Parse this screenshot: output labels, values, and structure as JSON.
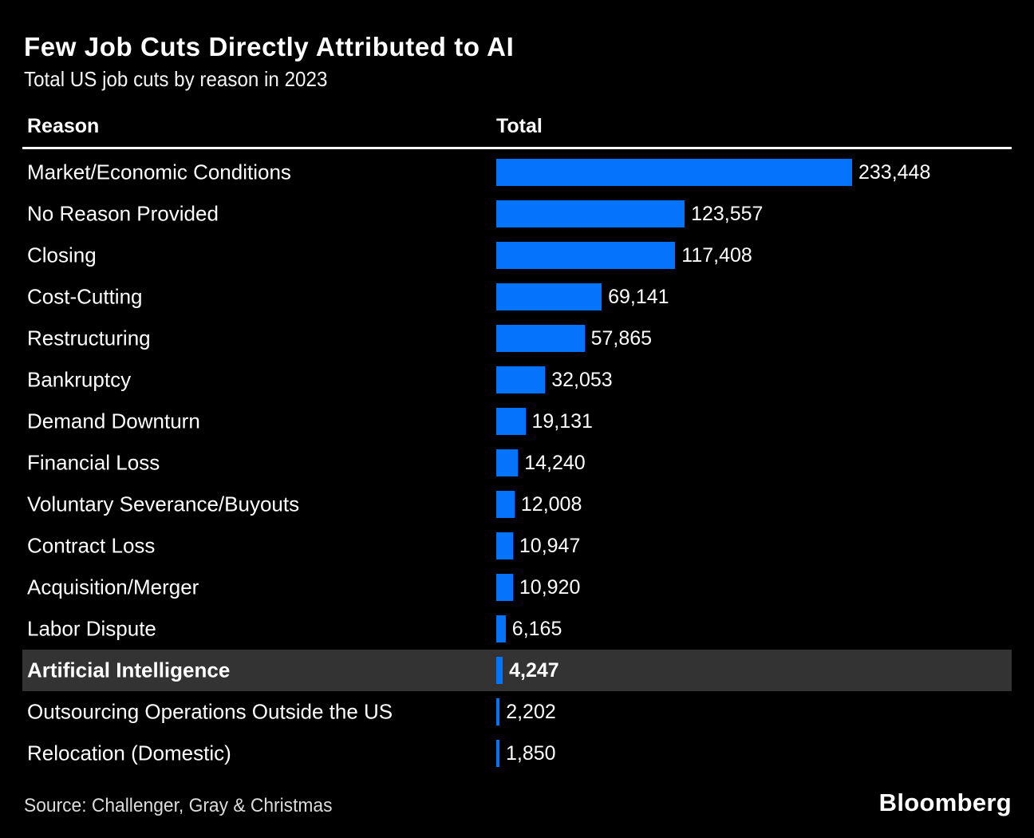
{
  "header": {
    "title": "Few Job Cuts Directly Attributed to AI",
    "subtitle": "Total US job cuts by reason in 2023"
  },
  "table": {
    "reason_header": "Reason",
    "total_header": "Total"
  },
  "chart_data": {
    "type": "bar",
    "orientation": "horizontal",
    "title": "Few Job Cuts Directly Attributed to AI",
    "subtitle": "Total US job cuts by reason in 2023",
    "xlabel": "Total",
    "ylabel": "Reason",
    "xlim": [
      0,
      233448
    ],
    "grid": false,
    "legend": "none",
    "categories": [
      "Market/Economic Conditions",
      "No Reason Provided",
      "Closing",
      "Cost-Cutting",
      "Restructuring",
      "Bankruptcy",
      "Demand Downturn",
      "Financial Loss",
      "Voluntary Severance/Buyouts",
      "Contract Loss",
      "Acquisition/Merger",
      "Labor Dispute",
      "Artificial Intelligence",
      "Outsourcing Operations Outside the US",
      "Relocation (Domestic)"
    ],
    "values": [
      233448,
      123557,
      117408,
      69141,
      57865,
      32053,
      19131,
      14240,
      12008,
      10947,
      10920,
      6165,
      4247,
      2202,
      1850
    ],
    "value_labels": [
      "233,448",
      "123,557",
      "117,408",
      "69,141",
      "57,865",
      "32,053",
      "19,131",
      "14,240",
      "12,008",
      "10,947",
      "10,920",
      "6,165",
      "4,247",
      "2,202",
      "1,850"
    ],
    "highlighted_category": "Artificial Intelligence",
    "highlight_index": 12,
    "bar_color": "#0673fc",
    "highlight_row_color": "#333333",
    "background_color": "#000000",
    "text_color": "#ffffff"
  },
  "footer": {
    "source": "Source: Challenger, Gray & Christmas",
    "logo": "Bloomberg"
  }
}
